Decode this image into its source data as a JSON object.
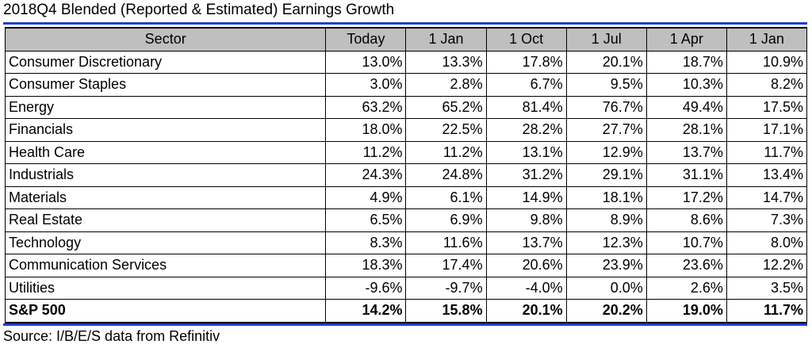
{
  "title": "2018Q4 Blended (Reported & Estimated) Earnings Growth",
  "columns": [
    "Sector",
    "Today",
    "1 Jan",
    "1 Oct",
    "1 Jul",
    "1 Apr",
    "1 Jan"
  ],
  "rows": [
    {
      "sector": "Consumer Discretionary",
      "values": [
        "13.0%",
        "13.3%",
        "17.8%",
        "20.1%",
        "18.7%",
        "10.9%"
      ]
    },
    {
      "sector": "Consumer Staples",
      "values": [
        "3.0%",
        "2.8%",
        "6.7%",
        "9.5%",
        "10.3%",
        "8.2%"
      ]
    },
    {
      "sector": "Energy",
      "values": [
        "63.2%",
        "65.2%",
        "81.4%",
        "76.7%",
        "49.4%",
        "17.5%"
      ]
    },
    {
      "sector": "Financials",
      "values": [
        "18.0%",
        "22.5%",
        "28.2%",
        "27.7%",
        "28.1%",
        "17.1%"
      ]
    },
    {
      "sector": "Health Care",
      "values": [
        "11.2%",
        "11.2%",
        "13.1%",
        "12.9%",
        "13.7%",
        "11.7%"
      ]
    },
    {
      "sector": "Industrials",
      "values": [
        "24.3%",
        "24.8%",
        "31.2%",
        "29.1%",
        "31.1%",
        "13.4%"
      ]
    },
    {
      "sector": "Materials",
      "values": [
        "4.9%",
        "6.1%",
        "14.9%",
        "18.1%",
        "17.2%",
        "14.7%"
      ]
    },
    {
      "sector": "Real Estate",
      "values": [
        "6.5%",
        "6.9%",
        "9.8%",
        "8.9%",
        "8.6%",
        "7.3%"
      ]
    },
    {
      "sector": "Technology",
      "values": [
        "8.3%",
        "11.6%",
        "13.7%",
        "12.3%",
        "10.7%",
        "8.0%"
      ]
    },
    {
      "sector": "Communication Services",
      "values": [
        "18.3%",
        "17.4%",
        "20.6%",
        "23.9%",
        "23.6%",
        "12.2%"
      ]
    },
    {
      "sector": "Utilities",
      "values": [
        "-9.6%",
        "-9.7%",
        "-4.0%",
        "0.0%",
        "2.6%",
        "3.5%"
      ]
    }
  ],
  "total": {
    "sector": "S&P 500",
    "values": [
      "14.2%",
      "15.8%",
      "20.1%",
      "20.2%",
      "19.0%",
      "11.7%"
    ]
  },
  "source": "Source: I/B/E/S data from Refinitiv",
  "colors": {
    "header_background": "#bfbfbf",
    "rule": "#1f3fd1",
    "border": "#000000"
  }
}
